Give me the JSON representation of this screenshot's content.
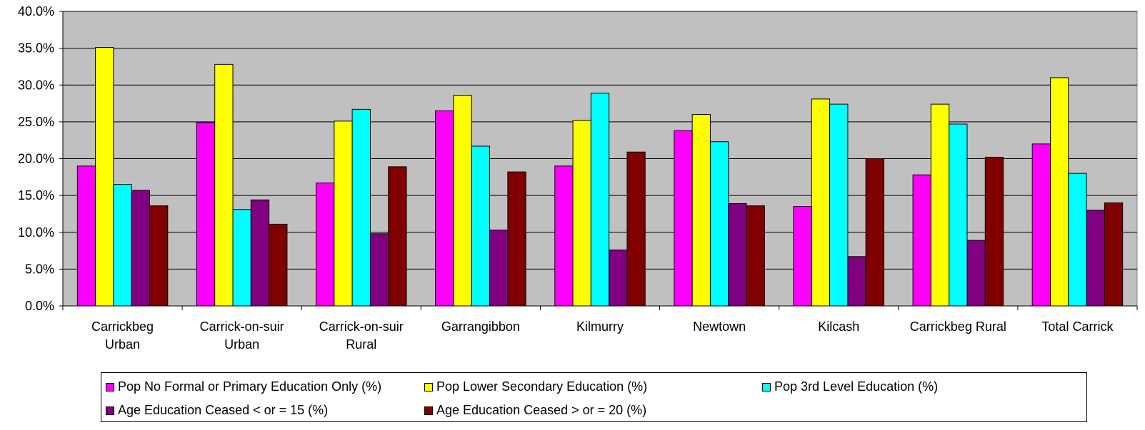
{
  "chart_data": {
    "type": "bar",
    "categories": [
      [
        "Carrickbeg",
        "Urban"
      ],
      [
        "Carrick-on-suir",
        "Urban"
      ],
      [
        "Carrick-on-suir",
        "Rural"
      ],
      [
        "Garrangibbon"
      ],
      [
        "Kilmurry"
      ],
      [
        "Newtown"
      ],
      [
        "Kilcash"
      ],
      [
        "Carrickbeg Rural"
      ],
      [
        "Total Carrick"
      ]
    ],
    "series": [
      {
        "name": "Pop No Formal or Primary Education Only (%)",
        "color": "#ff00ff",
        "values": [
          19.0,
          24.9,
          16.7,
          26.5,
          19.0,
          23.8,
          13.5,
          17.8,
          22.0
        ]
      },
      {
        "name": "Pop Lower Secondary Education (%)",
        "color": "#ffff00",
        "values": [
          35.1,
          32.8,
          25.1,
          28.6,
          25.2,
          26.0,
          28.1,
          27.4,
          31.0
        ]
      },
      {
        "name": "Pop 3rd Level Education (%)",
        "color": "#00ffff",
        "values": [
          16.5,
          13.1,
          26.7,
          21.7,
          28.9,
          22.3,
          27.4,
          24.7,
          18.0
        ]
      },
      {
        "name": "Age Education Ceased < or = 15 (%)",
        "color": "#800080",
        "values": [
          15.7,
          14.4,
          9.8,
          10.3,
          7.6,
          13.9,
          6.7,
          8.9,
          13.0
        ]
      },
      {
        "name": "Age Education Ceased > or = 20 (%)",
        "color": "#800000",
        "values": [
          13.6,
          11.1,
          18.9,
          18.2,
          20.9,
          13.6,
          20.0,
          20.2,
          14.0
        ]
      }
    ],
    "ylim": [
      0,
      40
    ],
    "yticks": [
      "0.0%",
      "5.0%",
      "10.0%",
      "15.0%",
      "20.0%",
      "25.0%",
      "30.0%",
      "35.0%",
      "40.0%"
    ],
    "grid": true,
    "plot_background": "#c0c0c0",
    "legend_position": "bottom"
  }
}
